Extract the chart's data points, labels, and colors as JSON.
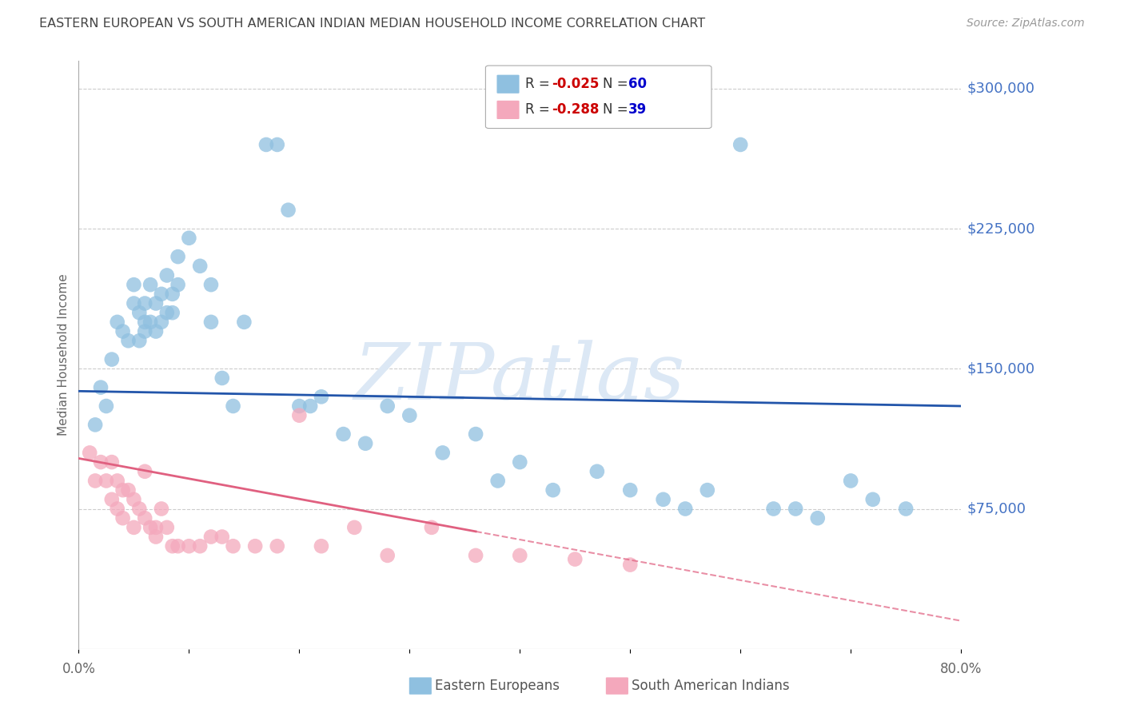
{
  "title": "EASTERN EUROPEAN VS SOUTH AMERICAN INDIAN MEDIAN HOUSEHOLD INCOME CORRELATION CHART",
  "source": "Source: ZipAtlas.com",
  "ylabel": "Median Household Income",
  "yticks": [
    0,
    75000,
    150000,
    225000,
    300000
  ],
  "ytick_labels": [
    "",
    "$75,000",
    "$150,000",
    "$225,000",
    "$300,000"
  ],
  "xmin": 0.0,
  "xmax": 80.0,
  "ymin": 0,
  "ymax": 315000,
  "blue_R": -0.025,
  "blue_N": 60,
  "pink_R": -0.288,
  "pink_N": 39,
  "blue_color": "#8fc0e0",
  "pink_color": "#f4a8bc",
  "blue_line_color": "#2255aa",
  "pink_line_color": "#e06080",
  "title_color": "#444444",
  "axis_label_color": "#4472c4",
  "watermark_color": "#dce8f5",
  "background_color": "#ffffff",
  "grid_color": "#cccccc",
  "legend_R_color": "#cc0000",
  "legend_N_color": "#0000cc",
  "blue_scatter_x": [
    1.5,
    2.0,
    2.5,
    3.0,
    3.5,
    4.0,
    4.5,
    5.0,
    5.0,
    5.5,
    5.5,
    6.0,
    6.0,
    6.0,
    6.5,
    6.5,
    7.0,
    7.0,
    7.5,
    7.5,
    8.0,
    8.0,
    8.5,
    8.5,
    9.0,
    9.0,
    10.0,
    11.0,
    12.0,
    12.0,
    13.0,
    14.0,
    15.0,
    17.0,
    18.0,
    19.0,
    20.0,
    21.0,
    22.0,
    24.0,
    26.0,
    28.0,
    30.0,
    33.0,
    36.0,
    38.0,
    40.0,
    43.0,
    47.0,
    50.0,
    53.0,
    55.0,
    57.0,
    60.0,
    63.0,
    65.0,
    67.0,
    70.0,
    72.0,
    75.0
  ],
  "blue_scatter_y": [
    120000,
    140000,
    130000,
    155000,
    175000,
    170000,
    165000,
    185000,
    195000,
    165000,
    180000,
    170000,
    175000,
    185000,
    175000,
    195000,
    185000,
    170000,
    175000,
    190000,
    180000,
    200000,
    180000,
    190000,
    195000,
    210000,
    220000,
    205000,
    195000,
    175000,
    145000,
    130000,
    175000,
    270000,
    270000,
    235000,
    130000,
    130000,
    135000,
    115000,
    110000,
    130000,
    125000,
    105000,
    115000,
    90000,
    100000,
    85000,
    95000,
    85000,
    80000,
    75000,
    85000,
    270000,
    75000,
    75000,
    70000,
    90000,
    80000,
    75000
  ],
  "pink_scatter_x": [
    1.0,
    1.5,
    2.0,
    2.5,
    3.0,
    3.0,
    3.5,
    3.5,
    4.0,
    4.0,
    4.5,
    5.0,
    5.0,
    5.5,
    6.0,
    6.0,
    6.5,
    7.0,
    7.0,
    7.5,
    8.0,
    8.5,
    9.0,
    10.0,
    11.0,
    12.0,
    13.0,
    14.0,
    16.0,
    18.0,
    20.0,
    22.0,
    25.0,
    28.0,
    32.0,
    36.0,
    40.0,
    45.0,
    50.0
  ],
  "pink_scatter_y": [
    105000,
    90000,
    100000,
    90000,
    100000,
    80000,
    90000,
    75000,
    85000,
    70000,
    85000,
    80000,
    65000,
    75000,
    95000,
    70000,
    65000,
    65000,
    60000,
    75000,
    65000,
    55000,
    55000,
    55000,
    55000,
    60000,
    60000,
    55000,
    55000,
    55000,
    125000,
    55000,
    65000,
    50000,
    65000,
    50000,
    50000,
    48000,
    45000
  ],
  "blue_trend_x0": 0.0,
  "blue_trend_y0": 138000,
  "blue_trend_x1": 80.0,
  "blue_trend_y1": 130000,
  "pink_trend_x0": 0.0,
  "pink_trend_y0": 102000,
  "pink_trend_x1": 80.0,
  "pink_trend_y1": 15000,
  "pink_solid_end_x": 36.0
}
